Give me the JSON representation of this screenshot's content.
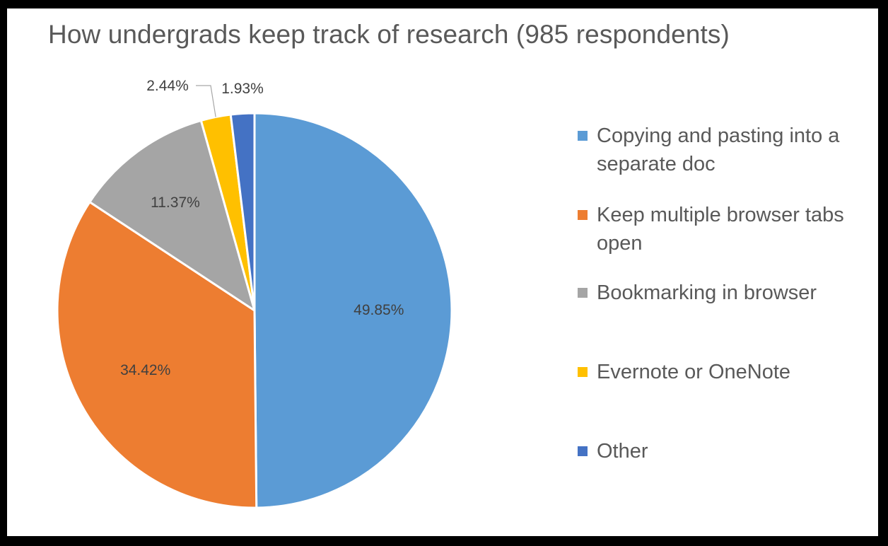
{
  "chart_data": {
    "type": "pie",
    "title": "How undergrads keep track of research (985 respondents)",
    "slices": [
      {
        "label": "Copying and pasting into a separate doc",
        "value": 49.85,
        "data_label": "49.85%",
        "color": "#5B9BD5"
      },
      {
        "label": "Keep multiple browser tabs open",
        "value": 34.42,
        "data_label": "34.42%",
        "color": "#ED7D31"
      },
      {
        "label": "Bookmarking in browser",
        "value": 11.37,
        "data_label": "11.37%",
        "color": "#A5A5A5"
      },
      {
        "label": "Evernote or OneNote",
        "value": 2.44,
        "data_label": "2.44%",
        "color": "#FFC000"
      },
      {
        "label": "Other",
        "value": 1.93,
        "data_label": "1.93%",
        "color": "#4472C4"
      }
    ],
    "start_angle": "12 o'clock",
    "direction": "clockwise",
    "legend_position": "right",
    "grid": false
  }
}
